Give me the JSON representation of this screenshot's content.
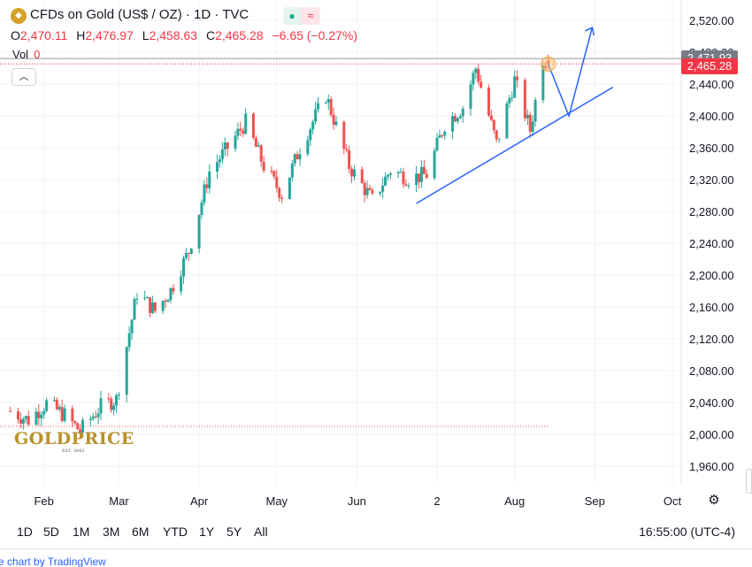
{
  "header": {
    "title": "CFDs on Gold (US$ / OZ) · 1D · TVC",
    "ohlc": {
      "o_label": "O",
      "o_value": "2,470.11",
      "h_label": "H",
      "h_value": "2,476.97",
      "l_label": "L",
      "l_value": "2,458.63",
      "c_label": "C",
      "c_value": "2,465.28",
      "change": "−6.65 (−0.27%)"
    },
    "vol_label": "Vol",
    "vol_value": "0",
    "collapse_icon": "chevron-up-icon"
  },
  "price_tags": {
    "prev_close": "2,471.93",
    "last": "2,465.28"
  },
  "timeframes": [
    "1D",
    "5D",
    "1M",
    "3M",
    "6M",
    "YTD",
    "1Y",
    "5Y",
    "All"
  ],
  "clock": "16:55:00 (UTC-4)",
  "attribution": "e chart by TradingView",
  "logo": {
    "text": "GOLDPRICE",
    "est": "EST. 2002"
  },
  "colors": {
    "up": "#26a69a",
    "down": "#ef5350",
    "trend": "#2962ff",
    "last_tag": "#f23645",
    "prev_tag": "#787b86",
    "highlight": "#f7c36b"
  },
  "chart_data": {
    "type": "candlestick",
    "title": "CFDs on Gold (US$ / OZ) · 1D · TVC",
    "y_ticks": [
      1960,
      2000,
      2040,
      2080,
      2120,
      2160,
      2200,
      2240,
      2280,
      2320,
      2360,
      2400,
      2440,
      2480,
      2520
    ],
    "y_tick_labels": [
      "1,960.00",
      "2,000.00",
      "2,040.00",
      "2,080.00",
      "2,120.00",
      "2,160.00",
      "2,200.00",
      "2,240.00",
      "2,280.00",
      "2,320.00",
      "2,360.00",
      "2,400.00",
      "2,440.00",
      "2,480.00",
      "2,520.00"
    ],
    "ylim": [
      1930,
      2545
    ],
    "x_labels": [
      {
        "label": "Feb",
        "date": "2024-02-01"
      },
      {
        "label": "Mar",
        "date": "2024-03-01"
      },
      {
        "label": "Apr",
        "date": "2024-04-01"
      },
      {
        "label": "May",
        "date": "2024-05-01"
      },
      {
        "label": "Jun",
        "date": "2024-06-01"
      },
      {
        "label": "2",
        "date": "2024-07-02"
      },
      {
        "label": "Aug",
        "date": "2024-08-01"
      },
      {
        "label": "Sep",
        "date": "2024-09-01"
      },
      {
        "label": "Oct",
        "date": "2024-10-01"
      }
    ],
    "close_series": [
      {
        "date": "2024-01-19",
        "close": 2029
      },
      {
        "date": "2024-01-26",
        "close": 2018
      },
      {
        "date": "2024-02-02",
        "close": 2039
      },
      {
        "date": "2024-02-09",
        "close": 2024
      },
      {
        "date": "2024-02-15",
        "close": 2004
      },
      {
        "date": "2024-02-23",
        "close": 2035
      },
      {
        "date": "2024-02-29",
        "close": 2044
      },
      {
        "date": "2024-03-08",
        "close": 2178
      },
      {
        "date": "2024-03-15",
        "close": 2155
      },
      {
        "date": "2024-03-21",
        "close": 2181
      },
      {
        "date": "2024-03-28",
        "close": 2230
      },
      {
        "date": "2024-04-05",
        "close": 2330
      },
      {
        "date": "2024-04-12",
        "close": 2360
      },
      {
        "date": "2024-04-19",
        "close": 2392
      },
      {
        "date": "2024-04-26",
        "close": 2337
      },
      {
        "date": "2024-05-03",
        "close": 2301
      },
      {
        "date": "2024-05-10",
        "close": 2360
      },
      {
        "date": "2024-05-20",
        "close": 2426
      },
      {
        "date": "2024-05-29",
        "close": 2337
      },
      {
        "date": "2024-06-07",
        "close": 2294
      },
      {
        "date": "2024-06-14",
        "close": 2332
      },
      {
        "date": "2024-06-21",
        "close": 2322
      },
      {
        "date": "2024-06-28",
        "close": 2326
      },
      {
        "date": "2024-07-05",
        "close": 2390
      },
      {
        "date": "2024-07-12",
        "close": 2411
      },
      {
        "date": "2024-07-17",
        "close": 2460
      },
      {
        "date": "2024-07-25",
        "close": 2365
      },
      {
        "date": "2024-08-01",
        "close": 2445
      },
      {
        "date": "2024-08-07",
        "close": 2382
      },
      {
        "date": "2024-08-12",
        "close": 2472
      },
      {
        "date": "2024-08-14",
        "close": 2465.28
      }
    ],
    "annotations": {
      "support_trendline": [
        {
          "date": "2024-06-24",
          "y": 2290
        },
        {
          "date": "2024-09-08",
          "y": 2436
        }
      ],
      "projection_arrow": [
        {
          "date": "2024-08-14",
          "y": 2465
        },
        {
          "date": "2024-08-22",
          "y": 2400
        },
        {
          "date": "2024-08-31",
          "y": 2511
        }
      ],
      "reference_line_y": 2010
    }
  }
}
